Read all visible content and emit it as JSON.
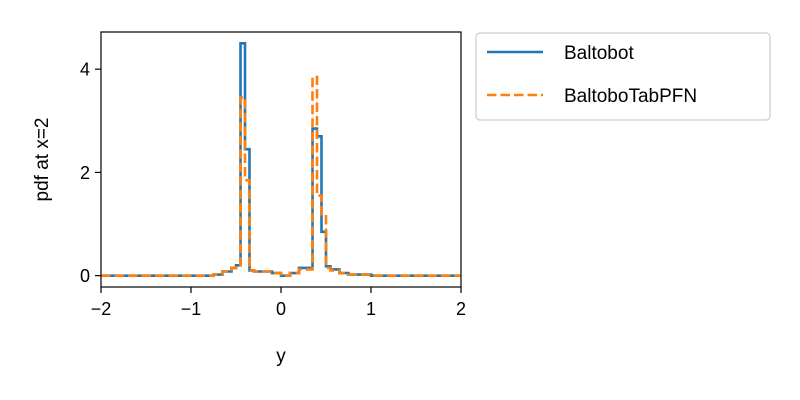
{
  "chart_data": {
    "type": "line",
    "step": true,
    "xlabel": "y",
    "ylabel": "pdf at x=2",
    "xlim": [
      -2,
      2
    ],
    "ylim": [
      -0.22,
      4.72
    ],
    "xticks": [
      -2,
      -1,
      0,
      1,
      2
    ],
    "xtick_labels": [
      "−2",
      "−1",
      "0",
      "1",
      "2"
    ],
    "yticks": [
      0,
      2,
      4
    ],
    "ytick_labels": [
      "0",
      "2",
      "4"
    ],
    "grid": false,
    "legend_position": "outside-right-top",
    "series": [
      {
        "name": "Baltobot",
        "color": "#1f77b4",
        "style": "solid",
        "x": [
          -2.0,
          -1.0,
          -0.75,
          -0.65,
          -0.55,
          -0.5,
          -0.45,
          -0.4,
          -0.35,
          -0.3,
          -0.1,
          0.0,
          0.1,
          0.2,
          0.3,
          0.35,
          0.4,
          0.45,
          0.5,
          0.55,
          0.65,
          0.75,
          1.0,
          2.0
        ],
        "y": [
          0.0,
          0.0,
          0.02,
          0.08,
          0.15,
          0.2,
          4.5,
          2.45,
          0.1,
          0.08,
          0.05,
          0.0,
          0.05,
          0.15,
          0.15,
          2.85,
          2.7,
          0.85,
          0.18,
          0.12,
          0.05,
          0.02,
          0.0,
          0.0
        ]
      },
      {
        "name": "BaltoboTabPFN",
        "color": "#ff7f0e",
        "style": "dashed",
        "x": [
          -2.0,
          -1.0,
          -0.75,
          -0.65,
          -0.55,
          -0.5,
          -0.45,
          -0.4,
          -0.35,
          -0.3,
          -0.1,
          0.0,
          0.1,
          0.2,
          0.3,
          0.35,
          0.4,
          0.45,
          0.5,
          0.55,
          0.65,
          0.75,
          1.0,
          2.0
        ],
        "y": [
          0.0,
          0.0,
          0.02,
          0.08,
          0.15,
          0.2,
          3.45,
          1.85,
          0.1,
          0.08,
          0.05,
          0.0,
          0.05,
          0.12,
          0.12,
          3.85,
          1.55,
          1.15,
          0.15,
          0.1,
          0.05,
          0.02,
          0.0,
          0.0
        ]
      }
    ]
  }
}
